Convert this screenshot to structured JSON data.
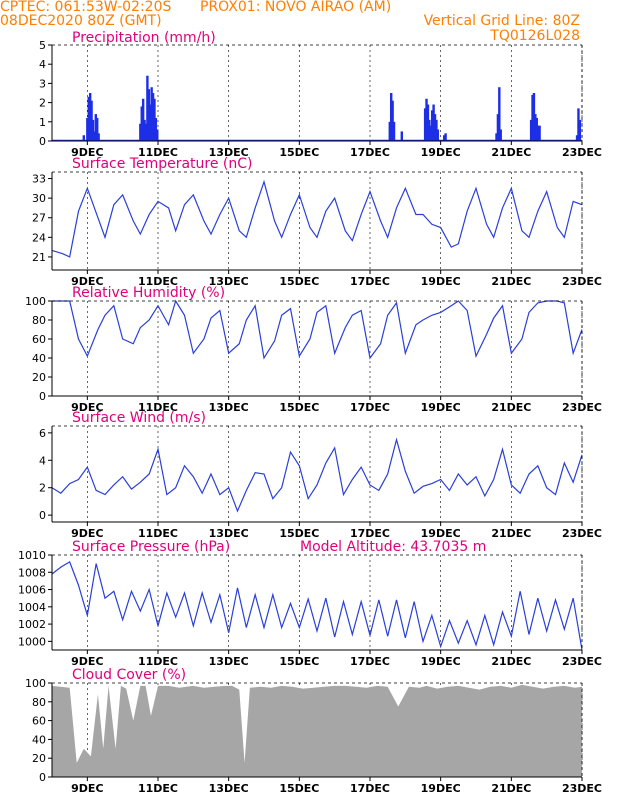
{
  "header": {
    "line1_left": "CPTEC:  061:53W-02:20S",
    "line1_right": "PROX01: NOVO AIRAO (AM)",
    "line2_left": "08DEC2020 80Z (GMT)",
    "line2_right": "Vertical Grid Line: 80Z",
    "line3_right": "TQ0126L028"
  },
  "colors": {
    "header": "#ff7f00",
    "title": "#e0007c",
    "line": "#2a3fd8",
    "bar": "#1d2ee6",
    "cloud": "#a6a6a6"
  },
  "x_ticks": [
    "9DEC",
    "11DEC",
    "13DEC",
    "15DEC",
    "17DEC",
    "19DEC",
    "21DEC",
    "23DEC"
  ],
  "chart_data": [
    {
      "type": "bar",
      "title": "Precipitation (mm/h)",
      "ylim": [
        0,
        5
      ],
      "yticks": [
        "0",
        "1",
        "2",
        "3",
        "4",
        "5"
      ],
      "x_unit": "day",
      "xlim": [
        8.0,
        23.0
      ],
      "x": [
        8.9,
        9.0,
        9.04,
        9.08,
        9.12,
        9.16,
        9.2,
        9.24,
        9.28,
        9.32,
        10.5,
        10.54,
        10.58,
        10.62,
        10.66,
        10.7,
        10.74,
        10.78,
        10.82,
        10.86,
        10.9,
        10.94,
        10.98,
        17.56,
        17.6,
        17.64,
        17.68,
        17.9,
        18.56,
        18.6,
        18.64,
        18.68,
        18.72,
        18.76,
        18.8,
        18.84,
        18.88,
        18.92,
        19.1,
        19.14,
        20.58,
        20.62,
        20.66,
        20.7,
        21.56,
        21.6,
        21.64,
        21.68,
        21.72,
        21.76,
        21.8,
        22.86,
        22.9,
        22.94
      ],
      "values": [
        0.3,
        1.2,
        2.3,
        2.5,
        2.1,
        1.1,
        0.5,
        1.4,
        1.2,
        0.4,
        0.9,
        1.8,
        2.2,
        1.1,
        0.9,
        3.4,
        2.7,
        1.9,
        2.8,
        2.5,
        2.2,
        1.2,
        0.6,
        1.0,
        2.5,
        2.1,
        1.0,
        0.5,
        1.7,
        2.2,
        1.9,
        1.1,
        0.8,
        1.6,
        1.9,
        1.4,
        1.1,
        0.6,
        0.3,
        0.4,
        0.4,
        1.4,
        2.8,
        0.6,
        1.1,
        2.4,
        2.5,
        1.4,
        1.2,
        0.8,
        0.8,
        0.3,
        1.7,
        1.1
      ]
    },
    {
      "type": "line",
      "title": "Surface Temperature (nC)",
      "ylim": [
        19,
        34
      ],
      "yticks": [
        "21",
        "24",
        "27",
        "30",
        "33"
      ],
      "x_unit": "day",
      "xlim": [
        8.0,
        23.0
      ],
      "x": [
        8.0,
        8.3,
        8.5,
        8.75,
        9.0,
        9.3,
        9.5,
        9.75,
        10.0,
        10.3,
        10.5,
        10.75,
        11.0,
        11.3,
        11.5,
        11.75,
        12.0,
        12.3,
        12.5,
        12.75,
        13.0,
        13.3,
        13.5,
        13.75,
        14.0,
        14.3,
        14.5,
        14.75,
        15.0,
        15.3,
        15.5,
        15.75,
        16.0,
        16.3,
        16.5,
        16.75,
        17.0,
        17.3,
        17.5,
        17.75,
        18.0,
        18.3,
        18.5,
        18.75,
        19.0,
        19.3,
        19.5,
        19.75,
        20.0,
        20.3,
        20.5,
        20.75,
        21.0,
        21.3,
        21.5,
        21.75,
        22.0,
        22.3,
        22.5,
        22.75,
        23.0
      ],
      "values": [
        22.0,
        21.5,
        21.0,
        28.0,
        31.5,
        27.0,
        24.0,
        29.0,
        30.5,
        26.5,
        24.5,
        27.5,
        29.5,
        28.5,
        25.0,
        29.0,
        30.5,
        26.5,
        24.5,
        27.5,
        30.0,
        25.0,
        24.0,
        28.5,
        32.5,
        26.5,
        24.0,
        27.5,
        30.5,
        25.5,
        24.0,
        28.0,
        30.0,
        25.0,
        23.5,
        27.5,
        31.0,
        26.5,
        24.0,
        28.5,
        31.5,
        27.5,
        27.5,
        26.0,
        25.5,
        22.5,
        23.0,
        28.0,
        31.5,
        26.0,
        24.0,
        28.5,
        31.5,
        25.0,
        24.0,
        28.0,
        31.0,
        25.5,
        24.0,
        29.5,
        29.0
      ]
    },
    {
      "type": "line",
      "title": "Relative Humidity (%)",
      "ylim": [
        0,
        100
      ],
      "yticks": [
        "0",
        "20",
        "40",
        "60",
        "80",
        "100"
      ],
      "x_unit": "day",
      "xlim": [
        8.0,
        23.0
      ],
      "x": [
        8.0,
        8.3,
        8.5,
        8.75,
        9.0,
        9.3,
        9.5,
        9.75,
        10.0,
        10.3,
        10.5,
        10.75,
        11.0,
        11.3,
        11.5,
        11.75,
        12.0,
        12.3,
        12.5,
        12.75,
        13.0,
        13.3,
        13.5,
        13.75,
        14.0,
        14.3,
        14.5,
        14.75,
        15.0,
        15.3,
        15.5,
        15.75,
        16.0,
        16.3,
        16.5,
        16.75,
        17.0,
        17.3,
        17.5,
        17.75,
        18.0,
        18.3,
        18.5,
        18.75,
        19.0,
        19.3,
        19.5,
        19.75,
        20.0,
        20.3,
        20.5,
        20.75,
        21.0,
        21.3,
        21.5,
        21.75,
        22.0,
        22.3,
        22.5,
        22.75,
        23.0
      ],
      "values": [
        100,
        100,
        100,
        60,
        42,
        70,
        85,
        95,
        60,
        55,
        72,
        80,
        95,
        75,
        100,
        85,
        45,
        60,
        82,
        90,
        45,
        55,
        80,
        95,
        40,
        58,
        85,
        92,
        42,
        60,
        88,
        95,
        45,
        72,
        85,
        90,
        40,
        55,
        85,
        98,
        45,
        75,
        80,
        85,
        88,
        95,
        100,
        90,
        42,
        65,
        82,
        95,
        45,
        60,
        88,
        98,
        100,
        100,
        98,
        45,
        70
      ]
    },
    {
      "type": "line",
      "title": "Surface Wind (m/s)",
      "ylim": [
        -0.5,
        6.5
      ],
      "yticks": [
        "0",
        "2",
        "4",
        "6"
      ],
      "x_unit": "day",
      "xlim": [
        8.0,
        23.0
      ],
      "x": [
        8.0,
        8.25,
        8.5,
        8.75,
        9.0,
        9.25,
        9.5,
        9.75,
        10.0,
        10.25,
        10.5,
        10.75,
        11.0,
        11.25,
        11.5,
        11.75,
        12.0,
        12.25,
        12.5,
        12.75,
        13.0,
        13.25,
        13.5,
        13.75,
        14.0,
        14.25,
        14.5,
        14.75,
        15.0,
        15.25,
        15.5,
        15.75,
        16.0,
        16.25,
        16.5,
        16.75,
        17.0,
        17.25,
        17.5,
        17.75,
        18.0,
        18.25,
        18.5,
        18.75,
        19.0,
        19.25,
        19.5,
        19.75,
        20.0,
        20.25,
        20.5,
        20.75,
        21.0,
        21.25,
        21.5,
        21.75,
        22.0,
        22.25,
        22.5,
        22.75,
        23.0
      ],
      "values": [
        2.0,
        1.6,
        2.3,
        2.6,
        3.5,
        1.8,
        1.5,
        2.2,
        2.8,
        1.9,
        2.4,
        3.0,
        4.8,
        1.5,
        2.0,
        3.6,
        2.8,
        1.6,
        3.0,
        1.5,
        2.0,
        0.3,
        1.8,
        3.1,
        3.0,
        1.2,
        2.0,
        4.6,
        3.6,
        1.2,
        2.2,
        3.8,
        4.9,
        1.5,
        2.6,
        3.5,
        2.2,
        1.8,
        3.0,
        5.5,
        3.2,
        1.6,
        2.1,
        2.3,
        2.6,
        1.8,
        3.0,
        2.2,
        2.8,
        1.4,
        2.6,
        4.8,
        2.2,
        1.6,
        3.0,
        3.6,
        2.0,
        1.5,
        3.8,
        2.4,
        4.4
      ]
    },
    {
      "type": "line",
      "title": "Surface Pressure (hPa)",
      "annotation": "Model Altitude: 43.7035 m",
      "ylim": [
        999,
        1010
      ],
      "yticks": [
        "1000",
        "1002",
        "1004",
        "1006",
        "1008",
        "1010"
      ],
      "x_unit": "day",
      "xlim": [
        8.0,
        23.0
      ],
      "x": [
        8.0,
        8.25,
        8.5,
        8.75,
        9.0,
        9.25,
        9.5,
        9.75,
        10.0,
        10.25,
        10.5,
        10.75,
        11.0,
        11.25,
        11.5,
        11.75,
        12.0,
        12.25,
        12.5,
        12.75,
        13.0,
        13.25,
        13.5,
        13.75,
        14.0,
        14.25,
        14.5,
        14.75,
        15.0,
        15.25,
        15.5,
        15.75,
        16.0,
        16.25,
        16.5,
        16.75,
        17.0,
        17.25,
        17.5,
        17.75,
        18.0,
        18.25,
        18.5,
        18.75,
        19.0,
        19.25,
        19.5,
        19.75,
        20.0,
        20.25,
        20.5,
        20.75,
        21.0,
        21.25,
        21.5,
        21.75,
        22.0,
        22.25,
        22.5,
        22.75,
        23.0
      ],
      "values": [
        1007.8,
        1008.6,
        1009.2,
        1006.5,
        1003.0,
        1009.0,
        1005.0,
        1005.8,
        1002.5,
        1005.8,
        1003.5,
        1006.0,
        1001.8,
        1005.6,
        1002.8,
        1005.6,
        1001.8,
        1005.6,
        1002.2,
        1005.4,
        1001.0,
        1006.2,
        1001.6,
        1005.4,
        1001.6,
        1005.4,
        1001.6,
        1004.4,
        1001.6,
        1004.9,
        1001.2,
        1005.0,
        1000.5,
        1004.6,
        1000.8,
        1004.6,
        1000.7,
        1004.8,
        1000.6,
        1004.8,
        1000.4,
        1004.6,
        1000.0,
        1003.0,
        999.4,
        1002.4,
        999.8,
        1002.4,
        999.6,
        1003.0,
        999.6,
        1003.4,
        1000.6,
        1005.8,
        1000.8,
        1005.0,
        1001.2,
        1004.8,
        1001.4,
        1005.0,
        999.0
      ]
    },
    {
      "type": "area",
      "title": "Cloud Cover (%)",
      "ylim": [
        0,
        100
      ],
      "yticks": [
        "0",
        "20",
        "40",
        "60",
        "80",
        "100"
      ],
      "x_unit": "day",
      "xlim": [
        8.0,
        23.0
      ],
      "x": [
        8.0,
        8.5,
        8.7,
        8.9,
        9.1,
        9.3,
        9.45,
        9.6,
        9.8,
        9.95,
        10.1,
        10.3,
        10.5,
        10.65,
        10.8,
        11.0,
        11.3,
        11.6,
        11.8,
        12.0,
        12.3,
        12.6,
        12.9,
        13.1,
        13.3,
        13.45,
        13.6,
        13.9,
        14.2,
        14.5,
        14.8,
        15.1,
        15.4,
        15.7,
        16.0,
        16.3,
        16.6,
        16.9,
        17.2,
        17.5,
        17.8,
        18.1,
        18.4,
        18.6,
        18.9,
        19.2,
        19.5,
        19.8,
        20.1,
        20.4,
        20.7,
        21.0,
        21.3,
        21.6,
        21.9,
        22.2,
        22.5,
        22.8,
        23.0
      ],
      "values": [
        97,
        95,
        15,
        30,
        22,
        88,
        30,
        97,
        30,
        97,
        94,
        60,
        97,
        97,
        65,
        97,
        97,
        95,
        96,
        97,
        95,
        96,
        97,
        97,
        93,
        15,
        95,
        96,
        95,
        97,
        96,
        94,
        95,
        96,
        97,
        97,
        96,
        95,
        97,
        96,
        75,
        96,
        95,
        97,
        94,
        96,
        97,
        95,
        93,
        96,
        97,
        95,
        98,
        96,
        94,
        96,
        97,
        95,
        96
      ]
    }
  ]
}
